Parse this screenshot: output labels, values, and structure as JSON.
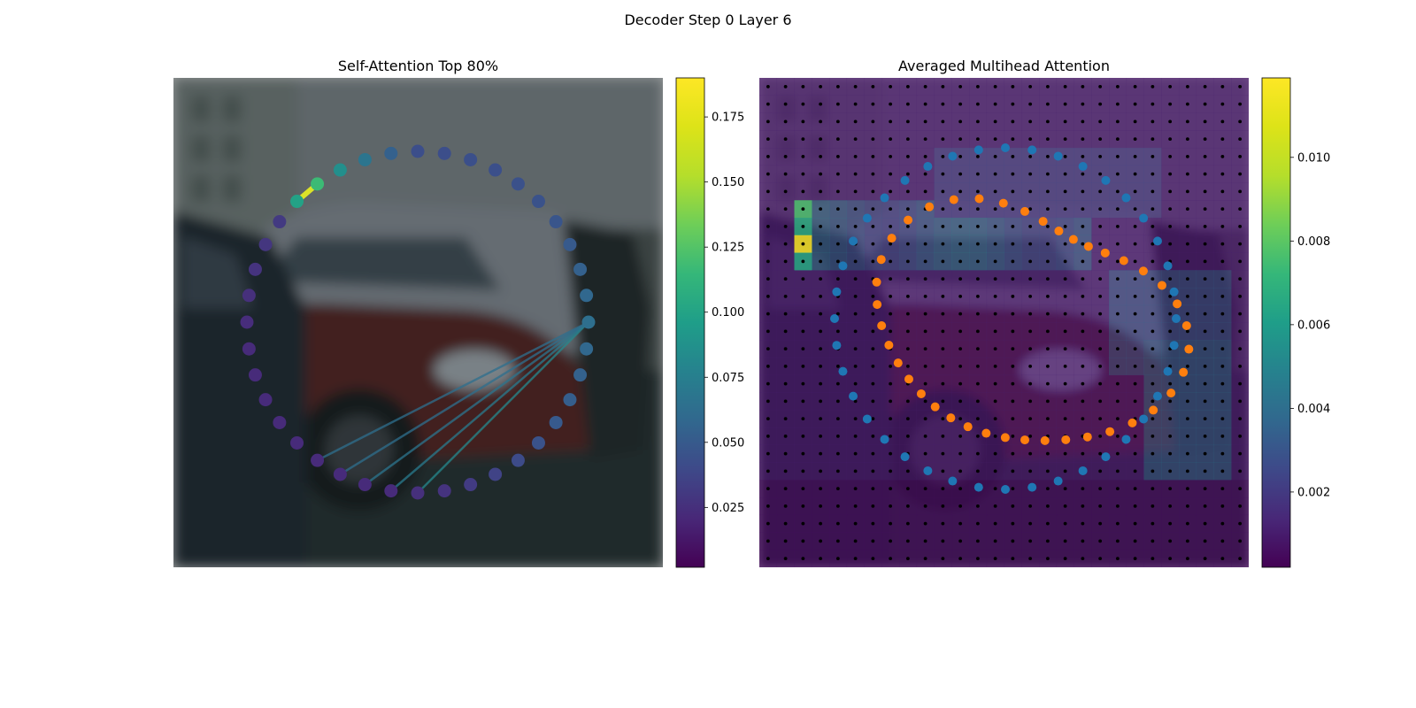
{
  "figure": {
    "suptitle": "Decoder Step 0 Layer 6"
  },
  "colors": {
    "colormap": "viridis",
    "blue_points": "#1f77b4",
    "orange_points": "#ff7f0e",
    "grid_points": "#000000"
  },
  "chart_data": [
    {
      "type": "scatter",
      "title": "Self-Attention Top 80%",
      "background": "blurred photo of parked cars (red car centre, silver car behind, dark car on left)",
      "n_points": 40,
      "point_shape": "circle",
      "point_weights": [
        0.047,
        0.047,
        0.048,
        0.048,
        0.049,
        0.05,
        0.052,
        0.055,
        0.06,
        0.065,
        0.07,
        0.065,
        0.06,
        0.058,
        0.055,
        0.05,
        0.045,
        0.04,
        0.035,
        0.03,
        0.028,
        0.025,
        0.025,
        0.025,
        0.025,
        0.025,
        0.025,
        0.025,
        0.025,
        0.025,
        0.026,
        0.028,
        0.03,
        0.032,
        0.034,
        0.11,
        0.13,
        0.095,
        0.075,
        0.06
      ],
      "edges": [
        {
          "from": 36,
          "to": 35,
          "weight": 0.18
        },
        {
          "from": 10,
          "to": 20,
          "weight": 0.09
        },
        {
          "from": 10,
          "to": 21,
          "weight": 0.08
        },
        {
          "from": 10,
          "to": 22,
          "weight": 0.075
        },
        {
          "from": 10,
          "to": 23,
          "weight": 0.07
        },
        {
          "from": 10,
          "to": 24,
          "weight": 0.07
        }
      ],
      "colorbar": {
        "cmap": "viridis",
        "range": [
          0.002,
          0.19
        ],
        "ticks": [
          0.025,
          0.05,
          0.075,
          0.1,
          0.125,
          0.15,
          0.175
        ],
        "tick_labels": [
          "0.025",
          "0.050",
          "0.075",
          "0.100",
          "0.125",
          "0.150",
          "0.175"
        ]
      }
    },
    {
      "type": "heatmap",
      "title": "Averaged Multihead Attention",
      "background": "same blurred car photo under attention heatmap",
      "grid": {
        "rows": 28,
        "cols": 28
      },
      "hot_cells": [
        {
          "row": 7,
          "col": 2,
          "value": 0.0085
        },
        {
          "row": 8,
          "col": 2,
          "value": 0.0075
        },
        {
          "row": 9,
          "col": 2,
          "value": 0.0118
        },
        {
          "row": 10,
          "col": 2,
          "value": 0.0072
        }
      ],
      "series": [
        {
          "color": "#1f77b4",
          "shape": "circle-ring",
          "n_points": 40
        },
        {
          "color": "#ff7f0e",
          "shape": "inner-contour",
          "n_points": 40
        }
      ],
      "colorbar": {
        "cmap": "viridis",
        "range": [
          0.0002,
          0.0119
        ],
        "ticks": [
          0.002,
          0.004,
          0.006,
          0.008,
          0.01
        ],
        "tick_labels": [
          "0.002",
          "0.004",
          "0.006",
          "0.008",
          "0.010"
        ]
      }
    }
  ]
}
